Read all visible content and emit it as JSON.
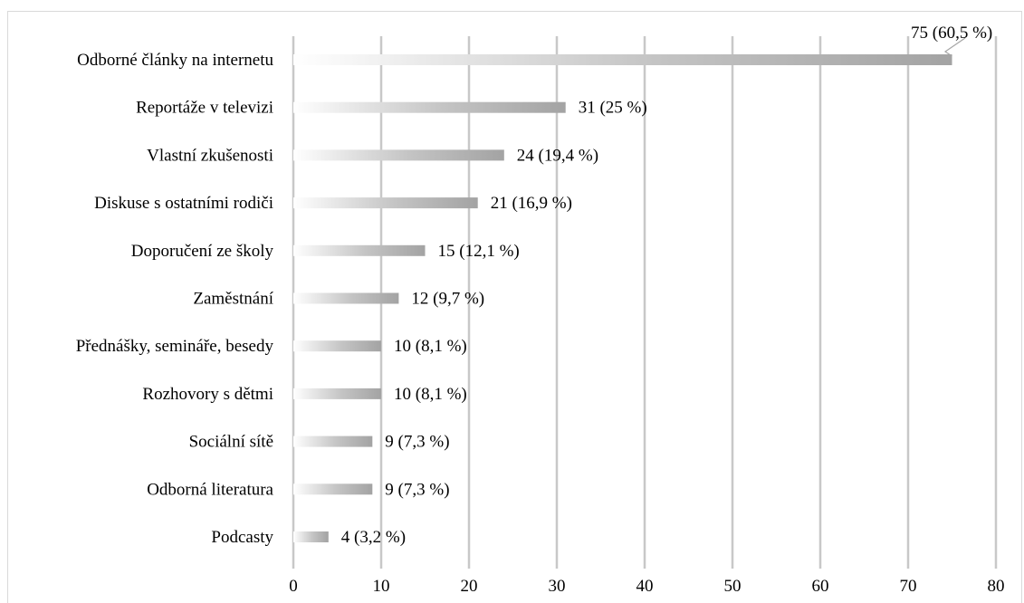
{
  "chart_data": {
    "type": "bar",
    "orientation": "horizontal",
    "title": "",
    "xlabel": "",
    "ylabel": "",
    "xlim": [
      0,
      80
    ],
    "x_ticks": [
      "0",
      "10",
      "20",
      "30",
      "40",
      "50",
      "60",
      "70",
      "80"
    ],
    "grid": "vertical",
    "bar_color": "#a6a6a6",
    "gridline_color": "#c8c8c8",
    "categories": [
      "Odborné články na internetu",
      "Reportáže v televizi",
      "Vlastní zkušenosti",
      "Diskuse s ostatními rodiči",
      "Doporučení ze školy",
      "Zaměstnání",
      "Přednášky, semináře, besedy",
      "Rozhovory s dětmi",
      "Sociální sítě",
      "Odborná literatura",
      "Podcasty"
    ],
    "values": [
      75,
      31,
      24,
      21,
      15,
      12,
      10,
      10,
      9,
      9,
      4
    ],
    "data_labels": [
      "75 (60,5 %)",
      "31 (25 %)",
      "24 (19,4 %)",
      "21 (16,9 %)",
      "15 (12,1 %)",
      "12 (9,7 %)",
      "10 (8,1 %)",
      "10 (8,1 %)",
      "9 (7,3 %)",
      "9 (7,3 %)",
      "4 (3,2 %)"
    ]
  }
}
